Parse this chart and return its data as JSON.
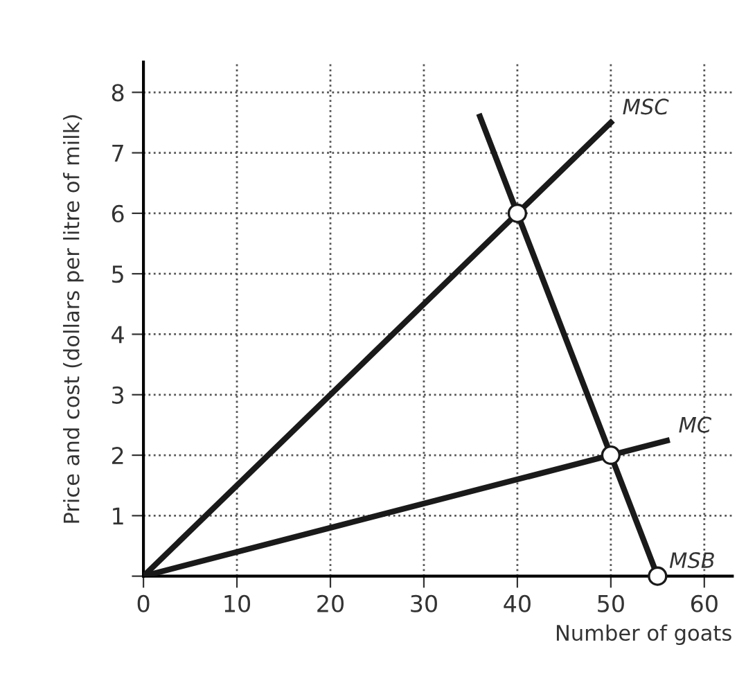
{
  "chart_data": {
    "type": "line",
    "xlabel": "Number of goats",
    "ylabel": "Price and cost (dollars per litre of milk)",
    "xlim": [
      0,
      63
    ],
    "ylim": [
      0,
      8.5
    ],
    "xticks": [
      0,
      10,
      20,
      30,
      40,
      50,
      60
    ],
    "yticks": [
      {
        "value": 0,
        "label": null
      },
      1,
      2,
      3,
      4,
      5,
      6,
      7,
      8
    ],
    "grid": true,
    "line_style": "solid",
    "legend": false,
    "series": [
      {
        "name": "MSC",
        "color": "#1a1a1a",
        "x": [
          0,
          40,
          50
        ],
        "values": [
          0,
          6,
          7.5
        ]
      },
      {
        "name": "MSB",
        "color": "#1a1a1a",
        "x": [
          36,
          40,
          50,
          55
        ],
        "values": [
          7.6,
          6,
          2,
          0
        ]
      },
      {
        "name": "MC",
        "color": "#1a1a1a",
        "x": [
          0,
          50,
          56
        ],
        "values": [
          0,
          2,
          2.24
        ]
      },
      {
        "type": "scatter",
        "marker": "circle",
        "color": "#1a1a1a",
        "x": [
          40,
          50,
          55
        ],
        "values": [
          6,
          2,
          0
        ]
      }
    ]
  }
}
